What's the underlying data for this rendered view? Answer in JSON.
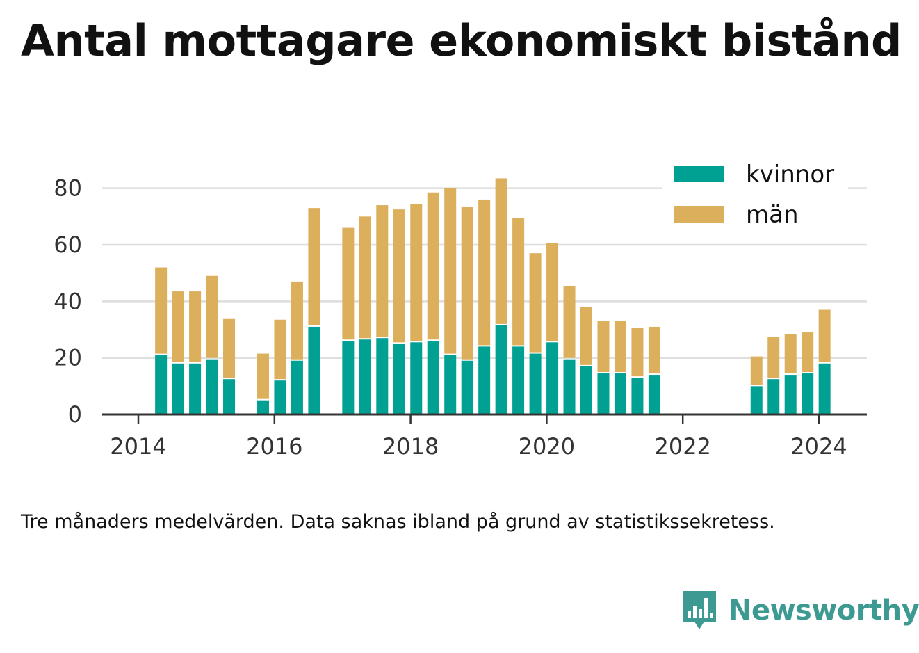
{
  "title": "Antal mottagare ekonomiskt bistånd",
  "caption": "Tre månaders medelvärden. Data saknas ibland på grund av statistikssekretess.",
  "brand": {
    "name": "Newsworthy",
    "color": "#3d9a92",
    "icon": "bar-chart-icon"
  },
  "chart_data": {
    "type": "bar",
    "stacked": true,
    "grid": true,
    "legend_position": "top-right",
    "ylim": [
      0,
      90
    ],
    "yticks": [
      "0",
      "20",
      "40",
      "60",
      "80"
    ],
    "xticks": [
      "2014",
      "2016",
      "2018",
      "2020",
      "2022",
      "2024"
    ],
    "x": [
      "2014-05",
      "2014-08",
      "2014-11",
      "2015-02",
      "2015-05",
      "2015-08",
      "2015-11",
      "2016-02",
      "2016-05",
      "2016-08",
      "2016-11",
      "2017-02",
      "2017-05",
      "2017-08",
      "2017-11",
      "2018-02",
      "2018-05",
      "2018-08",
      "2018-11",
      "2019-02",
      "2019-05",
      "2019-08",
      "2019-11",
      "2020-02",
      "2020-05",
      "2020-08",
      "2020-11",
      "2021-02",
      "2021-05",
      "2021-08",
      "2021-11",
      "2022-02",
      "2022-05",
      "2022-08",
      "2022-11",
      "2023-02",
      "2023-05",
      "2023-08",
      "2023-11",
      "2024-02"
    ],
    "series": [
      {
        "name": "kvinnor",
        "color": "#00a093",
        "values": [
          21,
          18,
          18,
          19.5,
          12.5,
          null,
          5,
          12,
          19,
          31,
          null,
          26,
          26.5,
          27,
          25,
          25.5,
          26,
          21,
          19,
          24,
          31.5,
          24,
          21.5,
          25.5,
          19.5,
          17,
          14.5,
          14.5,
          13,
          14,
          null,
          null,
          null,
          null,
          null,
          10,
          12.5,
          14,
          14.5,
          18
        ]
      },
      {
        "name": "män",
        "color": "#dbaf5b",
        "values": [
          31,
          25.5,
          25.5,
          29.5,
          21.5,
          null,
          16.5,
          21.5,
          28,
          42,
          null,
          40,
          43.5,
          47,
          47.5,
          49,
          52.5,
          59,
          54.5,
          52,
          52,
          45.5,
          35.5,
          35,
          26,
          21,
          18.5,
          18.5,
          17.5,
          17,
          null,
          null,
          null,
          null,
          null,
          10.5,
          15,
          14.5,
          14.5,
          19
        ]
      }
    ]
  }
}
